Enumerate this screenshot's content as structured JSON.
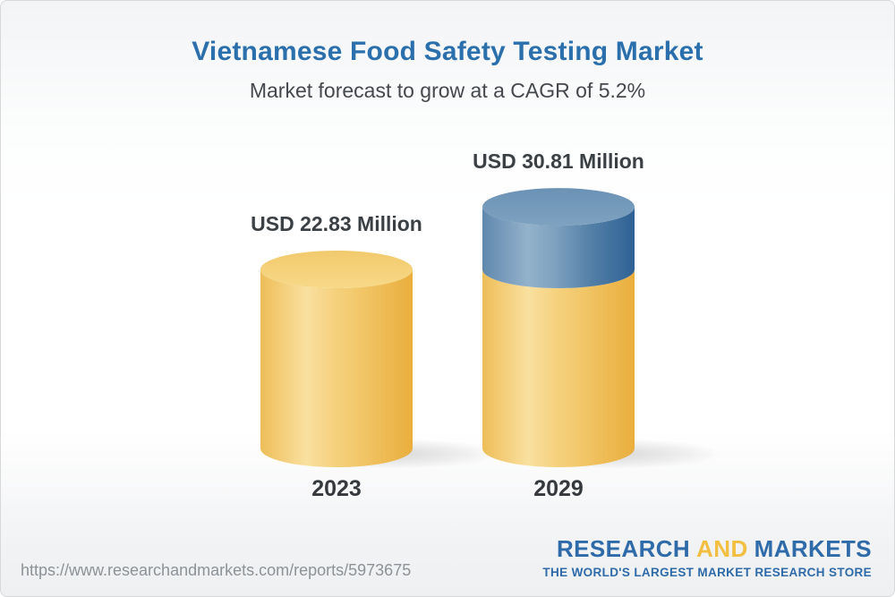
{
  "page": {
    "title": "Vietnamese Food Safety Testing Market",
    "subtitle": "Market forecast to grow at a CAGR of 5.2%",
    "source_url": "https://www.researchandmarkets.com/reports/5973675"
  },
  "chart_data": {
    "type": "bar",
    "variant": "3d-cylinder",
    "title": "Vietnamese Food Safety Testing Market",
    "subtitle": "Market forecast to grow at a CAGR of 5.2%",
    "cagr_percent": 5.2,
    "unit": "USD Million",
    "categories": [
      "2023",
      "2029"
    ],
    "values": [
      22.83,
      30.81
    ],
    "value_labels": [
      "USD 22.83 Million",
      "USD 30.81 Million"
    ],
    "legend": "none",
    "grid": false,
    "colors": {
      "base_bar": "#f2c768",
      "growth_segment": "#5f88ad",
      "value_label_text": "#3b4045",
      "category_label_text": "#35393d"
    }
  },
  "logo": {
    "word1": "RESEARCH",
    "word2": "AND",
    "word3": "MARKETS",
    "tagline": "THE WORLD'S LARGEST MARKET RESEARCH STORE",
    "blue": "#2e6ba8",
    "gold": "#f2bf42"
  },
  "theme": {
    "title_blue": "#2b70ac",
    "subtitle_gray": "#45484c",
    "url_gray": "#8d9297"
  }
}
